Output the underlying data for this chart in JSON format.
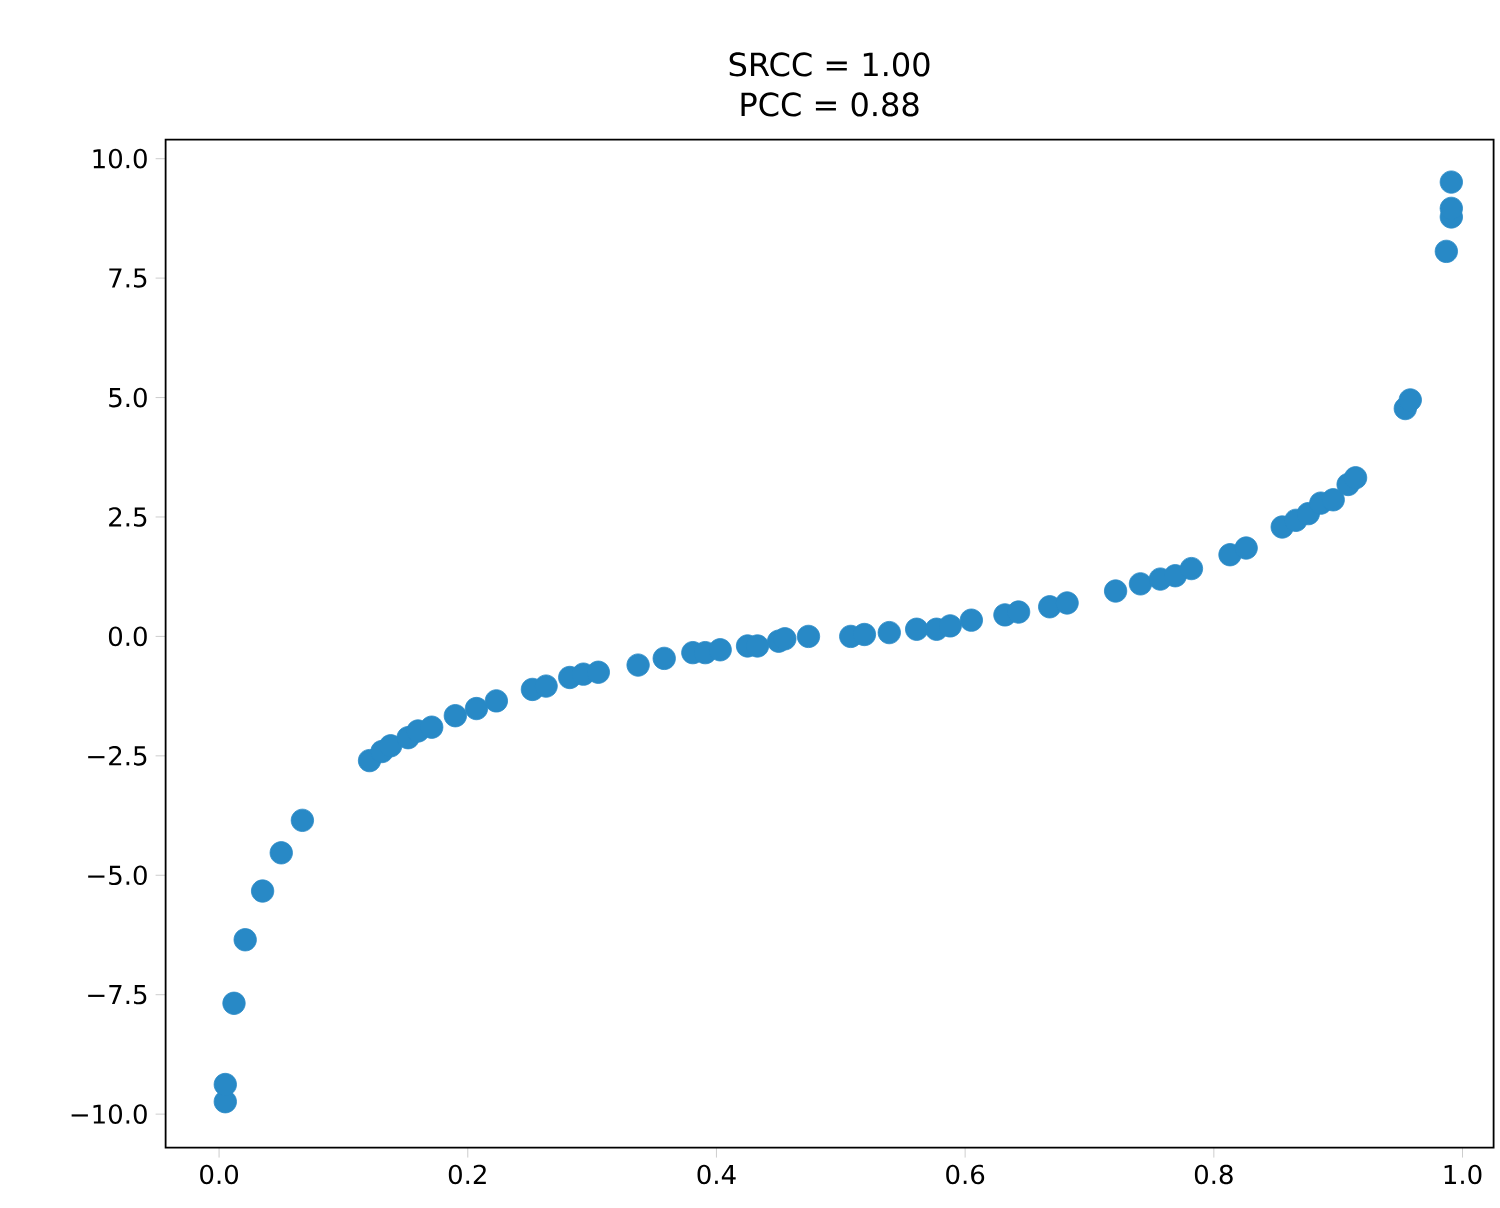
{
  "chart_data": {
    "type": "scatter",
    "title": "SRCC = 1.00\nPCC = 0.88",
    "color": "#2889c6",
    "marker": "circle",
    "x": [
      0.005,
      0.005,
      0.012,
      0.021,
      0.035,
      0.05,
      0.067,
      0.121,
      0.131,
      0.138,
      0.152,
      0.16,
      0.171,
      0.19,
      0.207,
      0.223,
      0.252,
      0.263,
      0.282,
      0.293,
      0.305,
      0.337,
      0.358,
      0.381,
      0.391,
      0.403,
      0.425,
      0.433,
      0.45,
      0.455,
      0.474,
      0.508,
      0.519,
      0.539,
      0.561,
      0.577,
      0.588,
      0.605,
      0.632,
      0.643,
      0.668,
      0.682,
      0.721,
      0.741,
      0.757,
      0.769,
      0.782,
      0.813,
      0.826,
      0.855,
      0.866,
      0.876,
      0.886,
      0.896,
      0.908,
      0.914,
      0.954,
      0.958,
      0.987,
      0.991,
      0.991,
      0.991
    ],
    "values": [
      -9.74,
      -9.38,
      -7.68,
      -6.35,
      -5.33,
      -4.53,
      -3.85,
      -2.6,
      -2.41,
      -2.29,
      -2.12,
      -1.98,
      -1.9,
      -1.66,
      -1.51,
      -1.35,
      -1.11,
      -1.04,
      -0.86,
      -0.79,
      -0.75,
      -0.6,
      -0.46,
      -0.34,
      -0.34,
      -0.28,
      -0.2,
      -0.2,
      -0.1,
      -0.05,
      0.0,
      0.0,
      0.04,
      0.08,
      0.15,
      0.15,
      0.22,
      0.34,
      0.45,
      0.51,
      0.62,
      0.7,
      0.95,
      1.1,
      1.2,
      1.27,
      1.42,
      1.71,
      1.85,
      2.29,
      2.43,
      2.57,
      2.79,
      2.86,
      3.18,
      3.32,
      4.77,
      4.95,
      8.06,
      8.78,
      8.96,
      9.51
    ],
    "xlim": [
      -0.043,
      1.025
    ],
    "ylim": [
      -10.7,
      10.4
    ],
    "xticks": [
      {
        "value": 0,
        "label": "0.0"
      },
      {
        "value": 0.2,
        "label": "0.2"
      },
      {
        "value": 0.4,
        "label": "0.4"
      },
      {
        "value": 0.6,
        "label": "0.6"
      },
      {
        "value": 0.8,
        "label": "0.8"
      },
      {
        "value": 1.0,
        "label": "1.0"
      }
    ],
    "yticks": [
      {
        "value": -10,
        "label": "−10.0"
      },
      {
        "value": -7.5,
        "label": "−7.5"
      },
      {
        "value": -5,
        "label": "−5.0"
      },
      {
        "value": -2.5,
        "label": "−2.5"
      },
      {
        "value": 0,
        "label": "0.0"
      },
      {
        "value": 2.5,
        "label": "2.5"
      },
      {
        "value": 5,
        "label": "5.0"
      },
      {
        "value": 7.5,
        "label": "7.5"
      },
      {
        "value": 10,
        "label": "10.0"
      }
    ]
  }
}
